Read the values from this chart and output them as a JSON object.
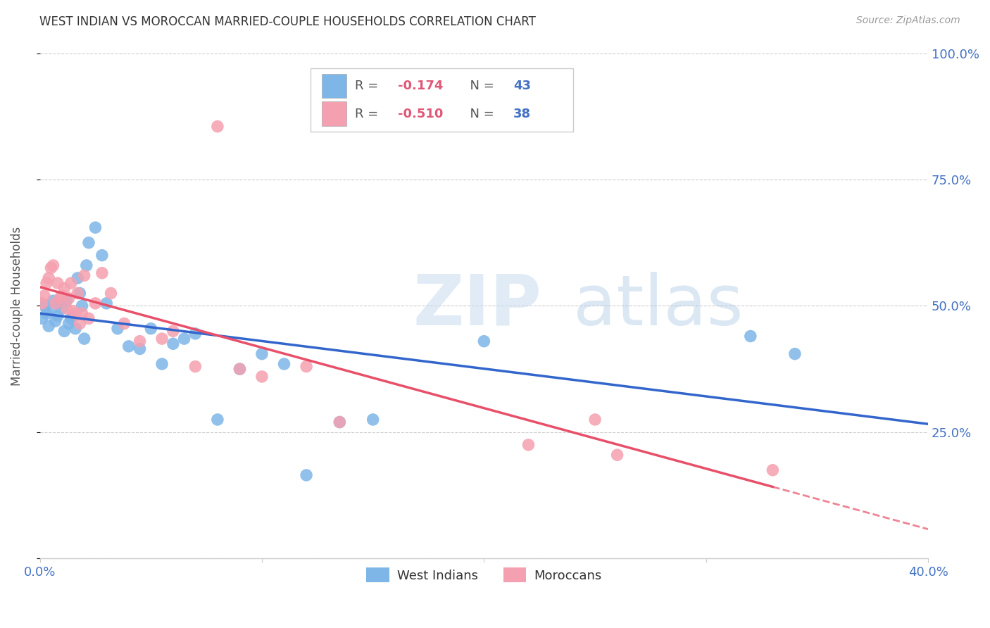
{
  "title": "WEST INDIAN VS MOROCCAN MARRIED-COUPLE HOUSEHOLDS CORRELATION CHART",
  "source": "Source: ZipAtlas.com",
  "ylabel": "Married-couple Households",
  "xlim": [
    0.0,
    0.4
  ],
  "ylim": [
    0.0,
    1.0
  ],
  "x_tick_pos": [
    0.0,
    0.1,
    0.2,
    0.3,
    0.4
  ],
  "x_tick_labels": [
    "0.0%",
    "",
    "",
    "",
    "40.0%"
  ],
  "y_tick_pos": [
    0.0,
    0.25,
    0.5,
    0.75,
    1.0
  ],
  "y_tick_labels": [
    "",
    "25.0%",
    "50.0%",
    "75.0%",
    "100.0%"
  ],
  "west_indian_color": "#7EB6E8",
  "moroccan_color": "#F5A0B0",
  "west_indian_line_color": "#3366CC",
  "moroccan_line_color": "#E8506A",
  "R_west_indian": -0.174,
  "N_west_indian": 43,
  "R_moroccan": -0.51,
  "N_moroccan": 38,
  "background_color": "#FFFFFF",
  "grid_color": "#CCCCCC",
  "legend_west_indians": "West Indians",
  "legend_moroccans": "Moroccans",
  "west_indian_x": [
    0.001,
    0.002,
    0.003,
    0.004,
    0.005,
    0.006,
    0.007,
    0.008,
    0.009,
    0.01,
    0.011,
    0.012,
    0.013,
    0.014,
    0.015,
    0.016,
    0.017,
    0.018,
    0.019,
    0.02,
    0.021,
    0.022,
    0.025,
    0.028,
    0.03,
    0.035,
    0.04,
    0.045,
    0.05,
    0.055,
    0.06,
    0.065,
    0.07,
    0.08,
    0.09,
    0.1,
    0.11,
    0.12,
    0.135,
    0.15,
    0.2,
    0.32,
    0.34
  ],
  "west_indian_y": [
    0.475,
    0.5,
    0.485,
    0.46,
    0.49,
    0.51,
    0.47,
    0.48,
    0.505,
    0.495,
    0.45,
    0.51,
    0.465,
    0.475,
    0.48,
    0.455,
    0.555,
    0.525,
    0.5,
    0.435,
    0.58,
    0.625,
    0.655,
    0.6,
    0.505,
    0.455,
    0.42,
    0.415,
    0.455,
    0.385,
    0.425,
    0.435,
    0.445,
    0.275,
    0.375,
    0.405,
    0.385,
    0.165,
    0.27,
    0.275,
    0.43,
    0.44,
    0.405
  ],
  "moroccan_x": [
    0.001,
    0.002,
    0.003,
    0.004,
    0.005,
    0.006,
    0.007,
    0.008,
    0.009,
    0.01,
    0.011,
    0.012,
    0.013,
    0.014,
    0.015,
    0.016,
    0.017,
    0.018,
    0.019,
    0.02,
    0.022,
    0.025,
    0.028,
    0.032,
    0.038,
    0.045,
    0.055,
    0.06,
    0.07,
    0.08,
    0.09,
    0.1,
    0.12,
    0.135,
    0.22,
    0.25,
    0.26,
    0.33
  ],
  "moroccan_y": [
    0.505,
    0.52,
    0.545,
    0.555,
    0.575,
    0.58,
    0.505,
    0.545,
    0.515,
    0.52,
    0.535,
    0.495,
    0.515,
    0.545,
    0.49,
    0.485,
    0.525,
    0.465,
    0.485,
    0.56,
    0.475,
    0.505,
    0.565,
    0.525,
    0.465,
    0.43,
    0.435,
    0.45,
    0.38,
    0.855,
    0.375,
    0.36,
    0.38,
    0.27,
    0.225,
    0.275,
    0.205,
    0.175
  ]
}
